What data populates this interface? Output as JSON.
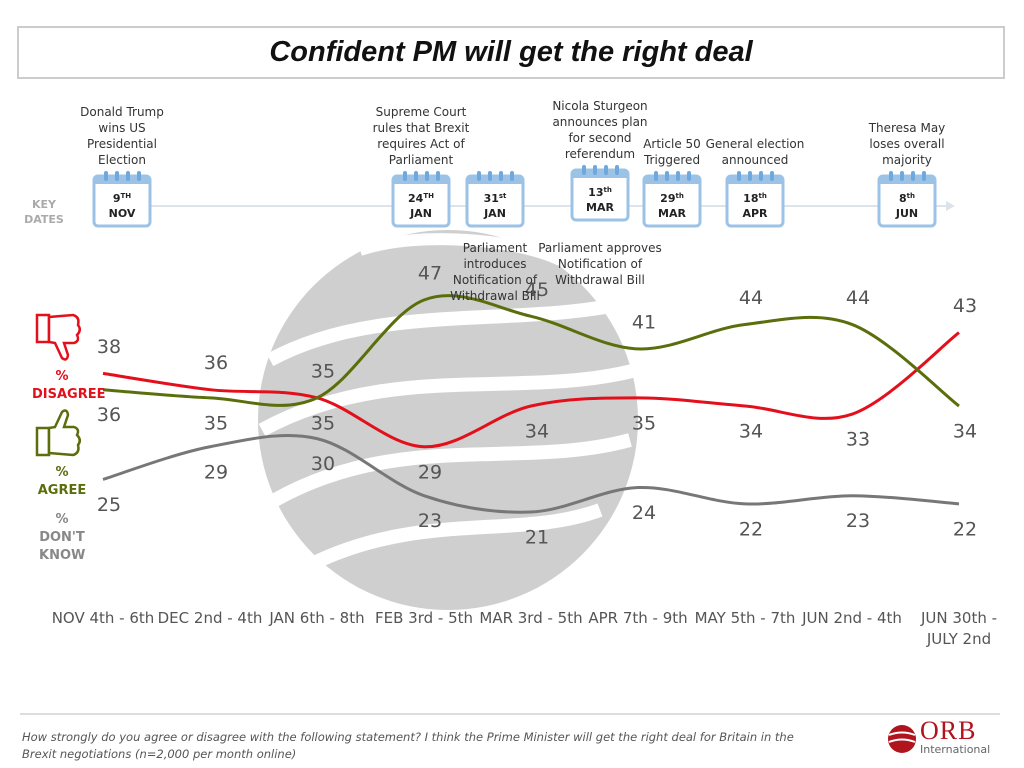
{
  "title": "Confident PM will get the right deal",
  "key_dates_label": "KEY DATES",
  "key_dates": [
    {
      "event": "Donald Trump wins US Presidential Election",
      "day": "9",
      "suffix": "TH",
      "month": "NOV"
    },
    {
      "event": "Supreme Court rules that Brexit requires Act of Parliament",
      "day": "24",
      "suffix": "TH",
      "month": "JAN"
    },
    {
      "day": "31",
      "suffix": "st",
      "month": "JAN",
      "note": "Parliament introduces Notification of Withdrawal Bill"
    },
    {
      "event": "Nicola Sturgeon announces plan for second referendum",
      "day": "13",
      "suffix": "th",
      "month": "MAR",
      "note": "Parliament approves Notification of Withdrawal Bill"
    },
    {
      "event": "Article 50 Triggered",
      "day": "29",
      "suffix": "th",
      "month": "MAR"
    },
    {
      "event": "General election announced",
      "day": "18",
      "suffix": "th",
      "month": "APR"
    },
    {
      "event": "Theresa May loses overall majority",
      "day": "8",
      "suffix": "th",
      "month": "JUN"
    }
  ],
  "chart_data": {
    "type": "line",
    "categories": [
      "NOV 4th - 6th",
      "DEC 2nd - 4th",
      "JAN 6th - 8th",
      "FEB 3rd - 5th",
      "MAR 3rd - 5th",
      "APR 7th - 9th",
      "MAY 5th - 7th",
      "JUN 2nd - 4th",
      "JUN 30th - JULY 2nd"
    ],
    "series": [
      {
        "name": "% DISAGREE",
        "color": "#e3101c",
        "values": [
          38,
          36,
          35,
          29,
          34,
          35,
          34,
          33,
          43
        ]
      },
      {
        "name": "% AGREE",
        "color": "#5a6e0c",
        "values": [
          36,
          35,
          35,
          47,
          45,
          41,
          44,
          44,
          34
        ]
      },
      {
        "name": "% DON'T KNOW",
        "color": "#777777",
        "values": [
          25,
          29,
          30,
          23,
          21,
          24,
          22,
          23,
          22
        ]
      }
    ]
  },
  "footnote": "How strongly do you agree or disagree with the following statement?  I think the Prime Minister will get the right deal for Britain in the Brexit negotiations (n=2,000 per month online)",
  "logo": {
    "name": "ORB",
    "subtitle": "International"
  }
}
